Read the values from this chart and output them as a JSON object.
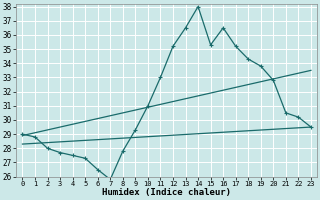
{
  "xlabel": "Humidex (Indice chaleur)",
  "ylabel": "",
  "xlim": [
    -0.5,
    23.5
  ],
  "ylim": [
    26,
    38.2
  ],
  "yticks": [
    26,
    27,
    28,
    29,
    30,
    31,
    32,
    33,
    34,
    35,
    36,
    37,
    38
  ],
  "xticks": [
    0,
    1,
    2,
    3,
    4,
    5,
    6,
    7,
    8,
    9,
    10,
    11,
    12,
    13,
    14,
    15,
    16,
    17,
    18,
    19,
    20,
    21,
    22,
    23
  ],
  "background_color": "#cce8e8",
  "grid_color": "#aadddd",
  "line_color": "#1a6b6b",
  "line1_x": [
    0,
    1,
    2,
    3,
    4,
    5,
    6,
    7,
    8,
    9,
    10,
    11,
    12,
    13,
    14,
    15,
    16,
    17,
    18,
    19,
    20,
    21,
    22,
    23
  ],
  "line1_y": [
    29.0,
    28.8,
    28.0,
    27.7,
    27.5,
    27.3,
    26.5,
    25.8,
    27.8,
    29.3,
    31.0,
    33.0,
    35.2,
    36.5,
    38.0,
    35.3,
    36.5,
    35.2,
    34.3,
    33.8,
    32.8,
    30.5,
    30.2,
    29.5
  ],
  "line2_x": [
    0,
    23
  ],
  "line2_y": [
    28.9,
    33.5
  ],
  "line3_x": [
    0,
    23
  ],
  "line3_y": [
    28.3,
    29.5
  ]
}
